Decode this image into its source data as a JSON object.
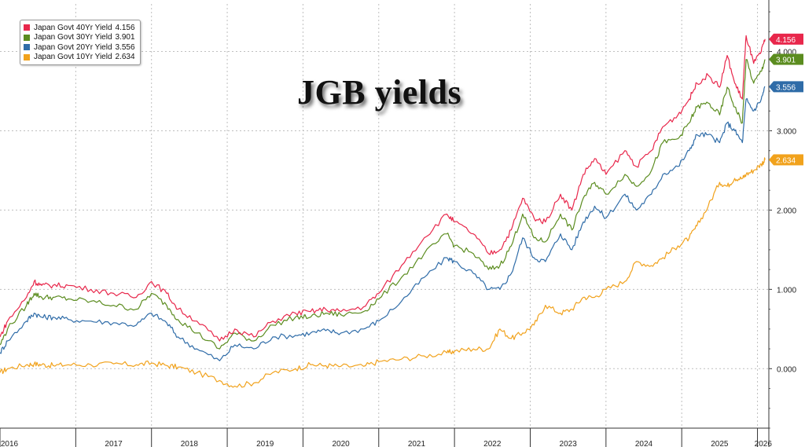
{
  "chart_data": {
    "type": "line",
    "title": "JGB yields",
    "xlabel": "",
    "ylabel": "",
    "x_ticks": [
      "2016",
      "2017",
      "2018",
      "2019",
      "2020",
      "2021",
      "2022",
      "2023",
      "2024",
      "2025",
      "2026"
    ],
    "y_ticks": [
      "0.000",
      "1.000",
      "2.000",
      "3.000",
      "4.000"
    ],
    "ylim": [
      -0.75,
      4.6
    ],
    "xlim": [
      2016.0,
      2026.15
    ],
    "grid": true,
    "legend_position": "top-left",
    "series": [
      {
        "name": "Japan Govt 40Yr Yield",
        "last_value": "4.156",
        "color": "#e8274b",
        "x": [
          2016.0,
          2016.1,
          2016.35,
          2016.45,
          2016.55,
          2016.7,
          2016.9,
          2017.2,
          2017.5,
          2017.8,
          2018.0,
          2018.2,
          2018.35,
          2018.6,
          2018.9,
          2019.1,
          2019.35,
          2019.6,
          2019.9,
          2020.1,
          2020.3,
          2020.5,
          2020.8,
          2021.0,
          2021.3,
          2021.6,
          2021.9,
          2022.0,
          2022.25,
          2022.45,
          2022.6,
          2022.75,
          2022.9,
          2023.05,
          2023.2,
          2023.4,
          2023.55,
          2023.7,
          2023.85,
          2024.0,
          2024.25,
          2024.4,
          2024.6,
          2024.75,
          2024.95,
          2025.1,
          2025.2,
          2025.35,
          2025.5,
          2025.6,
          2025.7,
          2025.8,
          2025.85,
          2025.95,
          2026.05,
          2026.1
        ],
        "values": [
          0.4,
          0.6,
          0.9,
          1.1,
          1.05,
          1.05,
          1.05,
          1.0,
          0.95,
          0.9,
          1.1,
          0.95,
          0.75,
          0.6,
          0.35,
          0.5,
          0.4,
          0.6,
          0.7,
          0.72,
          0.75,
          0.72,
          0.78,
          0.95,
          1.3,
          1.65,
          1.95,
          1.85,
          1.7,
          1.45,
          1.5,
          1.75,
          2.15,
          1.9,
          1.85,
          2.2,
          2.0,
          2.45,
          2.65,
          2.45,
          2.75,
          2.55,
          2.75,
          3.05,
          3.2,
          3.4,
          3.6,
          3.7,
          3.55,
          3.95,
          3.6,
          3.4,
          4.2,
          3.85,
          4.0,
          4.156
        ]
      },
      {
        "name": "Japan Govt 30Yr Yield",
        "last_value": "3.901",
        "color": "#5b8c1f",
        "x": [
          2016.0,
          2016.1,
          2016.35,
          2016.45,
          2016.55,
          2016.7,
          2016.9,
          2017.2,
          2017.5,
          2017.8,
          2018.0,
          2018.2,
          2018.35,
          2018.6,
          2018.9,
          2019.1,
          2019.35,
          2019.6,
          2019.9,
          2020.1,
          2020.3,
          2020.5,
          2020.8,
          2021.0,
          2021.3,
          2021.6,
          2021.9,
          2022.0,
          2022.25,
          2022.45,
          2022.6,
          2022.75,
          2022.9,
          2023.05,
          2023.2,
          2023.4,
          2023.55,
          2023.7,
          2023.85,
          2024.0,
          2024.25,
          2024.4,
          2024.6,
          2024.75,
          2024.95,
          2025.1,
          2025.2,
          2025.35,
          2025.5,
          2025.6,
          2025.7,
          2025.8,
          2025.85,
          2025.95,
          2026.05,
          2026.1
        ],
        "values": [
          0.3,
          0.5,
          0.8,
          0.95,
          0.9,
          0.9,
          0.88,
          0.85,
          0.8,
          0.75,
          0.95,
          0.8,
          0.62,
          0.45,
          0.25,
          0.45,
          0.35,
          0.55,
          0.65,
          0.65,
          0.7,
          0.68,
          0.72,
          0.88,
          1.15,
          1.45,
          1.7,
          1.55,
          1.45,
          1.25,
          1.3,
          1.55,
          1.95,
          1.65,
          1.6,
          1.95,
          1.75,
          2.15,
          2.35,
          2.2,
          2.45,
          2.3,
          2.5,
          2.85,
          2.9,
          3.1,
          3.3,
          3.35,
          3.2,
          3.55,
          3.3,
          3.1,
          3.9,
          3.6,
          3.75,
          3.901
        ]
      },
      {
        "name": "Japan Govt 20Yr Yield",
        "last_value": "3.556",
        "color": "#2f6ca8",
        "x": [
          2016.0,
          2016.1,
          2016.35,
          2016.45,
          2016.55,
          2016.7,
          2016.9,
          2017.2,
          2017.5,
          2017.8,
          2018.0,
          2018.2,
          2018.35,
          2018.6,
          2018.9,
          2019.1,
          2019.35,
          2019.6,
          2019.9,
          2020.1,
          2020.3,
          2020.5,
          2020.8,
          2021.0,
          2021.3,
          2021.6,
          2021.9,
          2022.0,
          2022.25,
          2022.45,
          2022.6,
          2022.75,
          2022.9,
          2023.05,
          2023.2,
          2023.4,
          2023.55,
          2023.7,
          2023.85,
          2024.0,
          2024.25,
          2024.4,
          2024.6,
          2024.75,
          2024.95,
          2025.1,
          2025.2,
          2025.35,
          2025.5,
          2025.6,
          2025.7,
          2025.8,
          2025.85,
          2025.95,
          2026.05,
          2026.1
        ],
        "values": [
          0.2,
          0.35,
          0.6,
          0.7,
          0.65,
          0.65,
          0.62,
          0.6,
          0.58,
          0.55,
          0.7,
          0.58,
          0.4,
          0.25,
          0.1,
          0.3,
          0.25,
          0.4,
          0.42,
          0.45,
          0.48,
          0.45,
          0.5,
          0.6,
          0.85,
          1.15,
          1.4,
          1.35,
          1.2,
          1.0,
          1.0,
          1.2,
          1.65,
          1.4,
          1.35,
          1.7,
          1.5,
          1.85,
          2.05,
          1.9,
          2.2,
          2.0,
          2.2,
          2.45,
          2.55,
          2.75,
          2.95,
          2.95,
          2.85,
          3.1,
          3.0,
          2.85,
          3.4,
          3.25,
          3.4,
          3.556
        ]
      },
      {
        "name": "Japan Govt 10Yr Yield",
        "last_value": "2.634",
        "color": "#f1a21c",
        "x": [
          2016.0,
          2016.1,
          2016.35,
          2016.45,
          2016.55,
          2016.7,
          2016.9,
          2017.2,
          2017.5,
          2017.8,
          2018.0,
          2018.2,
          2018.35,
          2018.6,
          2018.9,
          2019.1,
          2019.35,
          2019.6,
          2019.9,
          2020.1,
          2020.3,
          2020.5,
          2020.8,
          2021.0,
          2021.3,
          2021.6,
          2021.9,
          2022.0,
          2022.25,
          2022.45,
          2022.6,
          2022.75,
          2022.9,
          2023.05,
          2023.2,
          2023.4,
          2023.55,
          2023.7,
          2023.85,
          2024.0,
          2024.25,
          2024.4,
          2024.6,
          2024.75,
          2024.95,
          2025.1,
          2025.2,
          2025.35,
          2025.5,
          2025.6,
          2025.7,
          2025.8,
          2025.85,
          2025.95,
          2026.05,
          2026.1
        ],
        "values": [
          -0.05,
          0.0,
          0.05,
          0.06,
          0.05,
          0.04,
          0.05,
          0.05,
          0.06,
          0.05,
          0.07,
          0.04,
          0.02,
          -0.05,
          -0.15,
          -0.22,
          -0.18,
          -0.05,
          0.0,
          0.05,
          0.04,
          0.03,
          0.03,
          0.09,
          0.12,
          0.16,
          0.2,
          0.22,
          0.25,
          0.25,
          0.5,
          0.38,
          0.45,
          0.55,
          0.8,
          0.7,
          0.75,
          0.9,
          0.9,
          1.0,
          1.1,
          1.35,
          1.3,
          1.4,
          1.55,
          1.65,
          1.8,
          2.05,
          2.35,
          2.3,
          2.4,
          2.4,
          2.45,
          2.5,
          2.58,
          2.634
        ]
      }
    ]
  }
}
